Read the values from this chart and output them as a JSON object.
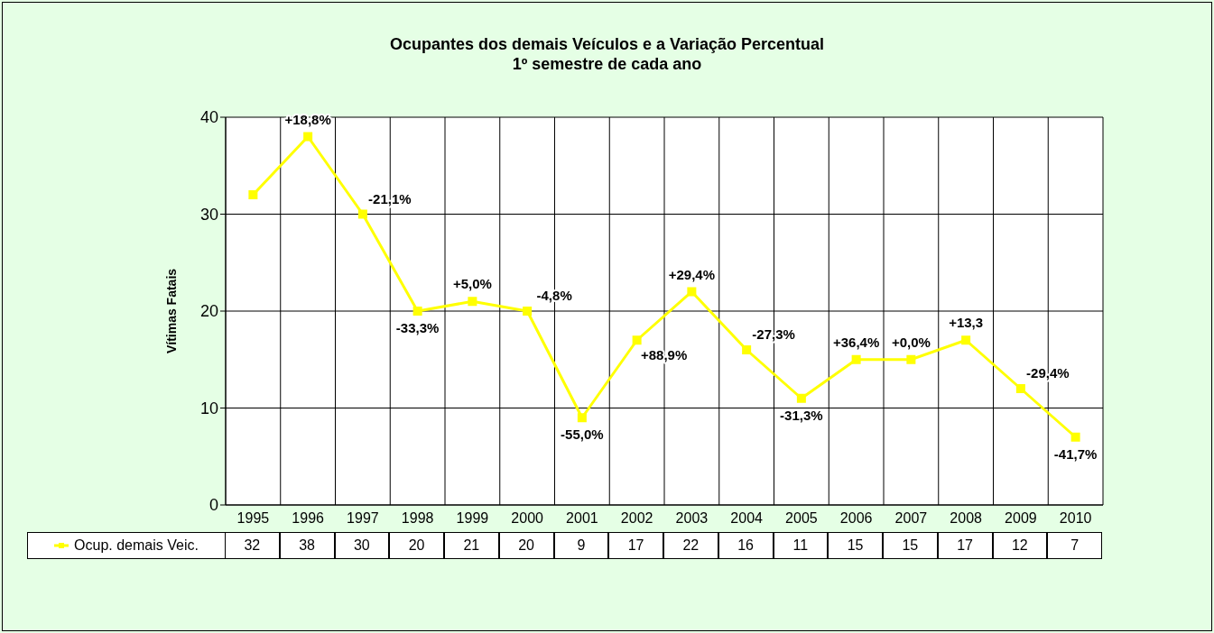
{
  "chart_data": {
    "type": "line",
    "title": "Ocupantes dos demais Veículos e a Variação Percentual",
    "subtitle": "1º semestre de cada ano",
    "ylabel": "Vítimas Fatais",
    "categories": [
      "1995",
      "1996",
      "1997",
      "1998",
      "1999",
      "2000",
      "2001",
      "2002",
      "2003",
      "2004",
      "2005",
      "2006",
      "2007",
      "2008",
      "2009",
      "2010"
    ],
    "series": [
      {
        "name": "Ocup. demais Veic.",
        "color": "#ffff00",
        "values": [
          32,
          38,
          30,
          20,
          21,
          20,
          9,
          17,
          22,
          16,
          11,
          15,
          15,
          17,
          12,
          7
        ]
      }
    ],
    "ylim": [
      0,
      40
    ],
    "yticks": [
      0,
      10,
      20,
      30,
      40
    ],
    "grid": true,
    "marker": "square",
    "line_style": "solid",
    "data_labels": true,
    "legend": "bottom",
    "annotations": [
      {
        "text": "+18,8%",
        "x": "1996",
        "y": 38
      },
      {
        "text": "-21,1%",
        "x": "1997",
        "y": 30
      },
      {
        "text": "-33,3%",
        "x": "1998",
        "y": 20
      },
      {
        "text": "+5,0%",
        "x": "1999",
        "y": 21
      },
      {
        "text": "-4,8%",
        "x": "2000",
        "y": 20
      },
      {
        "text": "-55,0%",
        "x": "2001",
        "y": 9
      },
      {
        "text": "+88,9%",
        "x": "2002",
        "y": 17
      },
      {
        "text": "+29,4%",
        "x": "2003",
        "y": 22
      },
      {
        "text": "-27,3%",
        "x": "2004",
        "y": 16
      },
      {
        "text": "-31,3%",
        "x": "2005",
        "y": 11
      },
      {
        "text": "+36,4%",
        "x": "2006",
        "y": 15
      },
      {
        "text": "+0,0%",
        "x": "2007",
        "y": 15
      },
      {
        "text": "+13,3",
        "x": "2008",
        "y": 17
      },
      {
        "text": "-29,4%",
        "x": "2009",
        "y": 12
      },
      {
        "text": "-41,7%",
        "x": "2010",
        "y": 7
      }
    ]
  }
}
